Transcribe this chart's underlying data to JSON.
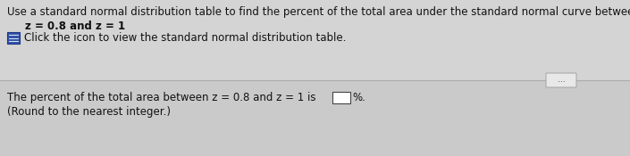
{
  "bg_color_top": "#d8d8d8",
  "bg_color_bottom": "#c8c8c8",
  "line1": "Use a standard normal distribution table to find the percent of the total area under the standard normal curve between the following z-scores.",
  "line2": "z = 0.8 and z = 1",
  "line3_icon_text": "Click the icon to view the standard normal distribution table.",
  "line4": "The percent of the total area between z = 0.8 and z = 1 is",
  "line5": "(Round to the nearest integer.)",
  "percent_symbol": "%.",
  "dots_label": "...",
  "font_size_main": 8.5,
  "font_size_small": 8.5,
  "text_color": "#111111",
  "icon_bg": "#3355aa",
  "icon_edge": "#223388",
  "box_color": "#ffffff",
  "divider_color": "#999999",
  "dots_box_facecolor": "#e8e8e8",
  "dots_box_edgecolor": "#aaaaaa"
}
